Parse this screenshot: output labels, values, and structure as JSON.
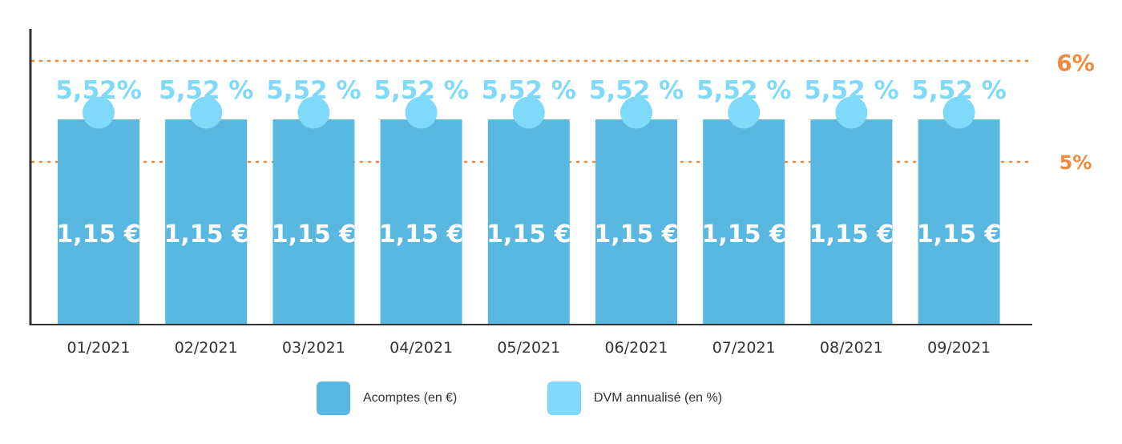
{
  "chart_data": {
    "type": "bar",
    "categories": [
      "01/2021",
      "02/2021",
      "03/2021",
      "04/2021",
      "05/2021",
      "06/2021",
      "07/2021",
      "08/2021",
      "09/2021"
    ],
    "series": [
      {
        "name": "Acomptes (en €)",
        "values": [
          1.15,
          1.15,
          1.15,
          1.15,
          1.15,
          1.15,
          1.15,
          1.15,
          1.15
        ],
        "labels": [
          "1,15 €",
          "1,15 €",
          "1,15 €",
          "1,15 €",
          "1,15 €",
          "1,15 €",
          "1,15 €",
          "1,15 €",
          "1,15 €"
        ],
        "color": "#58b8e2"
      },
      {
        "name": "DVM annualisé (en %)",
        "values": [
          5.52,
          5.52,
          5.52,
          5.52,
          5.52,
          5.52,
          5.52,
          5.52,
          5.52
        ],
        "labels": [
          "5,52%",
          "5,52 %",
          "5,52 %",
          "5,52 %",
          "5,52 %",
          "5,52 %",
          "5,52 %",
          "5,52 %",
          "5,52 %"
        ],
        "type": "point",
        "color": "#7fd9f8"
      }
    ],
    "reference_lines": [
      {
        "value": 6,
        "label": "6%",
        "color": "#f08a3a"
      },
      {
        "value": 5,
        "label": "5%",
        "color": "#f08a3a"
      }
    ],
    "ylim_percent": [
      3,
      6.3
    ],
    "legend_position": "bottom",
    "grid": false
  },
  "legend": {
    "acomptes": "Acomptes (en €)",
    "dvm": "DVM annualisé (en %)"
  }
}
